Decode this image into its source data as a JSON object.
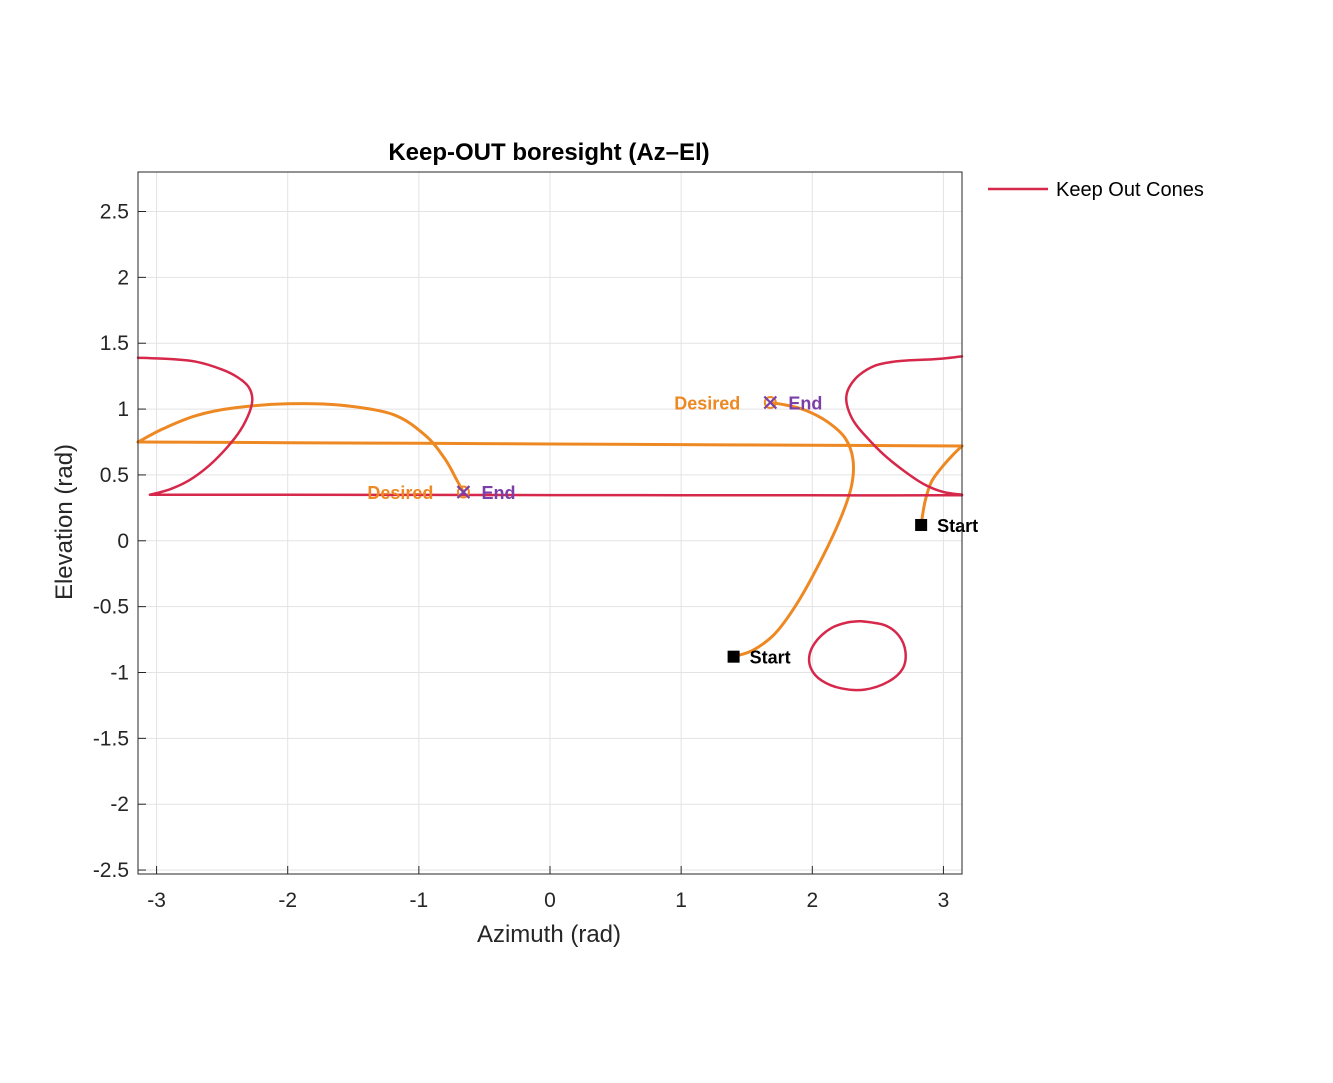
{
  "chart_data": {
    "type": "line",
    "title": "Keep-OUT boresight (Az–El)",
    "xlabel": "Azimuth (rad)",
    "ylabel": "Elevation (rad)",
    "xlim": [
      -3.1416,
      3.1416
    ],
    "ylim": [
      -2.53,
      2.8
    ],
    "xticks": [
      -3,
      -2,
      -1,
      0,
      1,
      2,
      3
    ],
    "xtick_labels": [
      "-3",
      "-2",
      "-1",
      "0",
      "1",
      "2",
      "3"
    ],
    "yticks": [
      -2.5,
      -2,
      -1.5,
      -1,
      -0.5,
      0,
      0.5,
      1,
      1.5,
      2,
      2.5
    ],
    "ytick_labels": [
      "-2.5",
      "-2",
      "-1.5",
      "-1",
      "-0.5",
      "0",
      "0.5",
      "1",
      "1.5",
      "2",
      "2.5"
    ],
    "grid": true,
    "legend": {
      "placement": "outside-top-right",
      "entries": [
        "Keep Out Cones"
      ]
    },
    "colors": {
      "keep_out": "#d6284a",
      "trajectory": "#ee8822",
      "end_label": "#7b3fa8",
      "start_marker": "#000000",
      "grid": "#e3e3e3",
      "axis": "#262626"
    },
    "series": [
      {
        "name": "Keep Out Cones",
        "role": "keep_out",
        "segments": [
          [
            [
              -3.1416,
              1.39
            ],
            [
              -2.9,
              1.38
            ],
            [
              -2.7,
              1.36
            ],
            [
              -2.5,
              1.3
            ],
            [
              -2.38,
              1.24
            ],
            [
              -2.3,
              1.17
            ],
            [
              -2.27,
              1.08
            ],
            [
              -2.29,
              0.98
            ],
            [
              -2.36,
              0.84
            ],
            [
              -2.47,
              0.7
            ],
            [
              -2.6,
              0.57
            ],
            [
              -2.75,
              0.46
            ],
            [
              -2.9,
              0.39
            ],
            [
              -3.05,
              0.35
            ]
          ],
          [
            [
              -3.05,
              0.35
            ],
            [
              -2.0,
              0.349
            ],
            [
              -1.0,
              0.348
            ],
            [
              0.0,
              0.347
            ],
            [
              1.0,
              0.346
            ],
            [
              2.0,
              0.345
            ],
            [
              3.0,
              0.345
            ],
            [
              3.1416,
              0.345
            ]
          ],
          [
            [
              3.1416,
              1.4
            ],
            [
              2.95,
              1.38
            ],
            [
              2.75,
              1.37
            ],
            [
              2.62,
              1.36
            ],
            [
              2.48,
              1.33
            ],
            [
              2.36,
              1.26
            ],
            [
              2.29,
              1.18
            ],
            [
              2.26,
              1.1
            ],
            [
              2.27,
              1.01
            ],
            [
              2.32,
              0.9
            ],
            [
              2.42,
              0.78
            ],
            [
              2.55,
              0.65
            ],
            [
              2.7,
              0.53
            ],
            [
              2.85,
              0.43
            ],
            [
              3.0,
              0.37
            ],
            [
              3.1416,
              0.35
            ]
          ],
          [
            [
              2.37,
              -0.61
            ],
            [
              2.55,
              -0.64
            ],
            [
              2.66,
              -0.72
            ],
            [
              2.71,
              -0.84
            ],
            [
              2.69,
              -0.97
            ],
            [
              2.58,
              -1.07
            ],
            [
              2.4,
              -1.13
            ],
            [
              2.22,
              -1.12
            ],
            [
              2.07,
              -1.06
            ],
            [
              1.99,
              -0.97
            ],
            [
              1.98,
              -0.86
            ],
            [
              2.04,
              -0.75
            ],
            [
              2.15,
              -0.66
            ],
            [
              2.27,
              -0.62
            ],
            [
              2.37,
              -0.61
            ]
          ]
        ]
      },
      {
        "role": "trajectory",
        "segments": [
          [
            [
              1.4,
              -0.88
            ],
            [
              1.55,
              -0.83
            ],
            [
              1.72,
              -0.7
            ],
            [
              1.9,
              -0.45
            ],
            [
              2.08,
              -0.12
            ],
            [
              2.22,
              0.18
            ],
            [
              2.3,
              0.42
            ],
            [
              2.31,
              0.62
            ],
            [
              2.25,
              0.78
            ],
            [
              2.12,
              0.9
            ],
            [
              1.95,
              0.99
            ],
            [
              1.8,
              1.03
            ],
            [
              1.68,
              1.05
            ]
          ],
          [
            [
              2.83,
              0.12
            ],
            [
              2.86,
              0.3
            ],
            [
              2.91,
              0.45
            ],
            [
              2.99,
              0.56
            ],
            [
              3.07,
              0.65
            ],
            [
              3.1416,
              0.72
            ]
          ],
          [
            [
              3.1416,
              0.72
            ],
            [
              2.0,
              0.725
            ],
            [
              1.0,
              0.73
            ],
            [
              0.0,
              0.735
            ],
            [
              -1.0,
              0.74
            ],
            [
              -2.0,
              0.745
            ],
            [
              -3.1416,
              0.75
            ]
          ],
          [
            [
              -3.1416,
              0.75
            ],
            [
              -2.95,
              0.85
            ],
            [
              -2.7,
              0.95
            ],
            [
              -2.4,
              1.01
            ],
            [
              -2.0,
              1.04
            ],
            [
              -1.6,
              1.03
            ],
            [
              -1.2,
              0.96
            ],
            [
              -0.95,
              0.8
            ],
            [
              -0.8,
              0.62
            ],
            [
              -0.71,
              0.46
            ],
            [
              -0.66,
              0.37
            ]
          ]
        ]
      }
    ],
    "markers": [
      {
        "kind": "start",
        "x": 1.4,
        "y": -0.88,
        "label": "Start"
      },
      {
        "kind": "start",
        "x": 2.83,
        "y": 0.12,
        "label": "Start"
      },
      {
        "kind": "end",
        "x": 1.68,
        "y": 1.05,
        "label": "End",
        "desired_label": "Desired"
      },
      {
        "kind": "end",
        "x": -0.66,
        "y": 0.37,
        "label": "End",
        "desired_label": "Desired"
      }
    ]
  }
}
